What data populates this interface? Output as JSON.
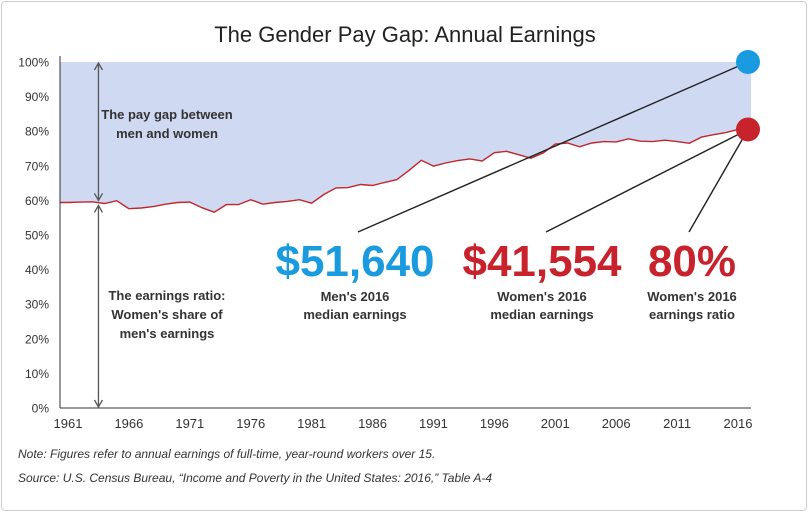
{
  "chart_data": {
    "type": "area",
    "title": "The Gender Pay Gap: Annual Earnings",
    "x_tick_labels": [
      "1961",
      "1966",
      "1971",
      "1976",
      "1981",
      "1986",
      "1991",
      "1996",
      "2001",
      "2006",
      "2011",
      "2016"
    ],
    "y_tick_labels": [
      "0%",
      "10%",
      "20%",
      "30%",
      "40%",
      "50%",
      "60%",
      "70%",
      "80%",
      "90%",
      "100%"
    ],
    "xlim": [
      1961,
      2017
    ],
    "ylim": [
      0,
      100
    ],
    "grid": false,
    "series": [
      {
        "x": [
          1961,
          1962,
          1963,
          1964,
          1965,
          1966,
          1967,
          1968,
          1969,
          1970,
          1971,
          1972,
          1973,
          1974,
          1975,
          1976,
          1977,
          1978,
          1979,
          1980,
          1981,
          1982,
          1983,
          1984,
          1985,
          1986,
          1987,
          1988,
          1989,
          1990,
          1991,
          1992,
          1993,
          1994,
          1995,
          1996,
          1997,
          1998,
          1999,
          2000,
          2001,
          2002,
          2003,
          2004,
          2005,
          2006,
          2007,
          2008,
          2009,
          2010,
          2011,
          2012,
          2013,
          2014,
          2015,
          2016
        ],
        "values": [
          59.4,
          59.5,
          59.6,
          59.1,
          59.9,
          57.6,
          57.8,
          58.2,
          58.9,
          59.4,
          59.5,
          57.9,
          56.6,
          58.8,
          58.8,
          60.2,
          58.9,
          59.4,
          59.7,
          60.2,
          59.2,
          61.7,
          63.6,
          63.7,
          64.6,
          64.3,
          65.2,
          66.0,
          68.7,
          71.6,
          69.9,
          70.8,
          71.5,
          72.0,
          71.4,
          73.8,
          74.2,
          73.2,
          72.2,
          73.7,
          76.3,
          76.6,
          75.5,
          76.6,
          77.0,
          76.9,
          77.8,
          77.1,
          77.0,
          77.4,
          77.0,
          76.5,
          78.3,
          79.0,
          79.6,
          80.5
        ]
      }
    ],
    "colors": {
      "gap_fill": "#cfd9f2",
      "women_line": "#c0272d",
      "men_dot": "#1a9be0",
      "women_dot": "#c8232c",
      "axis": "#333333",
      "pointer": "#222222"
    },
    "annotations": {
      "gap_label": [
        "The pay gap between",
        "men and women"
      ],
      "ratio_label": [
        "The earnings ratio:",
        "Women's share of",
        "men's earnings"
      ],
      "men_value": "$51,640",
      "men_caption": [
        "Men's 2016",
        "median earnings"
      ],
      "women_value": "$41,554",
      "women_caption": [
        "Women's 2016",
        "median earnings"
      ],
      "ratio_value": "80%",
      "ratio_caption": [
        "Women's 2016",
        "earnings ratio"
      ]
    }
  },
  "footer": {
    "note": "Note: Figures refer to annual earnings of full-time, year-round workers over 15.",
    "source": "Source: U.S. Census Bureau, “Income and Poverty in the United States: 2016,” Table A-4"
  }
}
